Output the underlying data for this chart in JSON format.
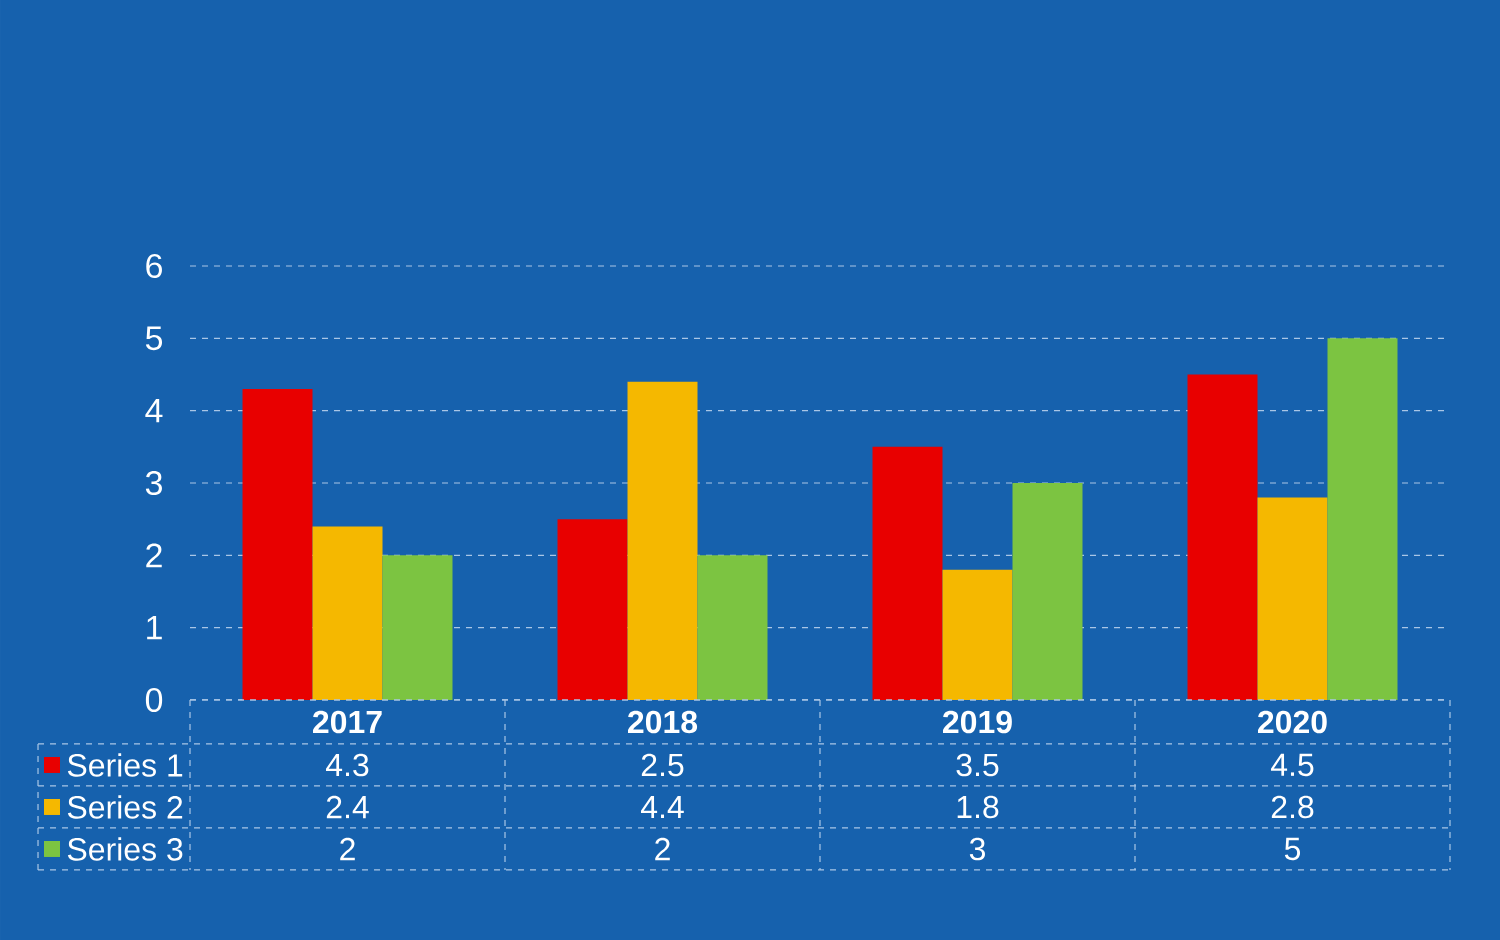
{
  "chart_data": {
    "type": "bar",
    "categories": [
      "2017",
      "2018",
      "2019",
      "2020"
    ],
    "series": [
      {
        "name": "Series 1",
        "color": "#e80000",
        "values": [
          4.3,
          2.5,
          3.5,
          4.5
        ]
      },
      {
        "name": "Series 2",
        "color": "#f5b800",
        "values": [
          2.4,
          4.4,
          1.8,
          2.8
        ]
      },
      {
        "name": "Series 3",
        "color": "#7cc441",
        "values": [
          2,
          2,
          3,
          5
        ]
      }
    ],
    "ylim": [
      0,
      6
    ],
    "yticks": [
      0,
      1,
      2,
      3,
      4,
      5,
      6
    ],
    "grid": "y",
    "legend": "bottom",
    "data_labels": true
  }
}
